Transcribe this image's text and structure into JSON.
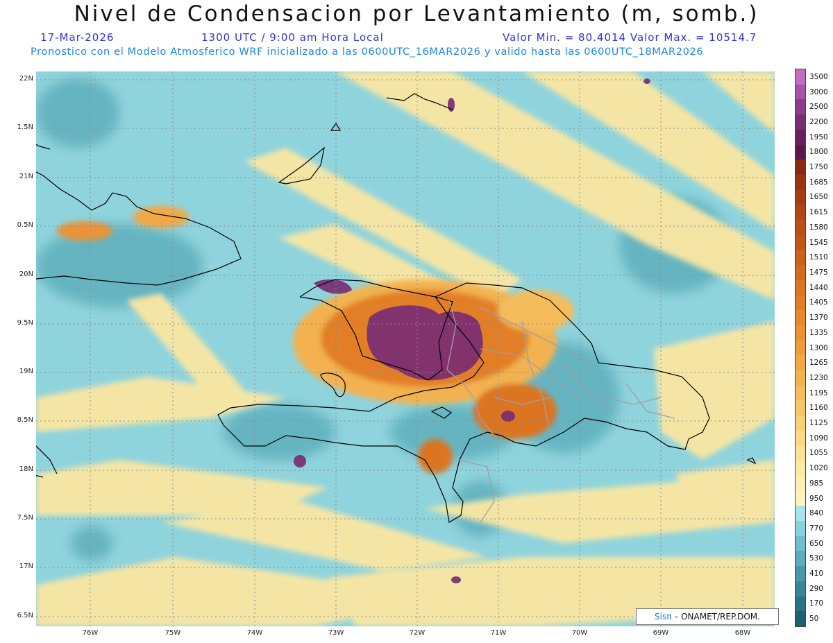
{
  "header": {
    "title": "Nivel de Condensacion por Levantamiento (m, somb.)",
    "date": "17-Mar-2026",
    "time": "1300 UTC / 9:00 am Hora Local",
    "minmax": "Valor Min. = 80.4014  Valor Max. = 10514.7",
    "model_line": "Pronostico con el Modelo Atmosferico WRF inicializado a las 0600UTC_16MAR2026 y valido hasta las  0600UTC_18MAR2026"
  },
  "axes": {
    "lat_labels": [
      "22N",
      "1.5N",
      "21N",
      "0.5N",
      "20N",
      "9.5N",
      "19N",
      "8.5N",
      "18N",
      "7.5N",
      "17N",
      "6.5N"
    ],
    "lon_labels": [
      "76W",
      "75W",
      "74W",
      "73W",
      "72W",
      "71W",
      "70W",
      "69W",
      "68W"
    ]
  },
  "colorbar": {
    "levels": [
      "3500",
      "3000",
      "2500",
      "2200",
      "1950",
      "1800",
      "1750",
      "1685",
      "1650",
      "1615",
      "1580",
      "1545",
      "1510",
      "1475",
      "1440",
      "1405",
      "1370",
      "1335",
      "1300",
      "1265",
      "1230",
      "1195",
      "1160",
      "1125",
      "1090",
      "1055",
      "1020",
      "985",
      "950",
      "840",
      "770",
      "650",
      "530",
      "410",
      "290",
      "170",
      "50"
    ],
    "colors": [
      "#c26cc2",
      "#a653a9",
      "#8e3d8e",
      "#7a2d73",
      "#69205e",
      "#5b1849",
      "#8b2a12",
      "#9a3414",
      "#a63c14",
      "#b24614",
      "#bc4e16",
      "#c45618",
      "#cd601a",
      "#d56a1e",
      "#dc7422",
      "#e27e27",
      "#e6882d",
      "#eb9334",
      "#ee9d3c",
      "#f1a845",
      "#f3b250",
      "#f5bc5c",
      "#f7c66a",
      "#f9d078",
      "#fbd987",
      "#fce297",
      "#fdeaa6",
      "#fdf0b3",
      "#fef5be",
      "#a8e4ea",
      "#88d1dc",
      "#6ebfcd",
      "#59adbd",
      "#4798ab",
      "#388598",
      "#2b7285",
      "#1f6171"
    ]
  },
  "credit": {
    "logo": "Sisπ",
    "text": "– ONAMET/REP.DOM."
  }
}
